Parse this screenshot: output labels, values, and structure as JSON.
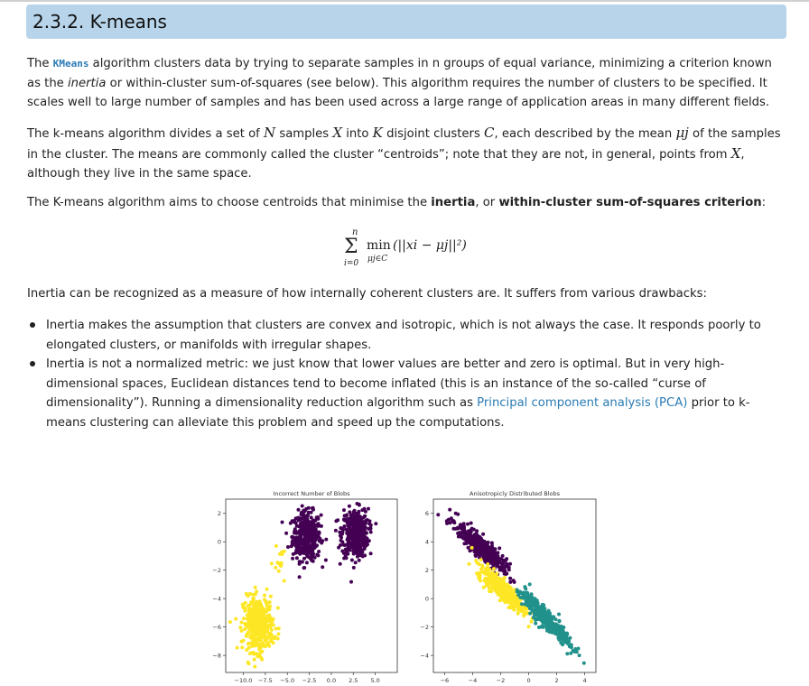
{
  "section": {
    "title": "2.3.2. K-means"
  },
  "para1": {
    "lead": "The ",
    "code": "KMeans",
    "text_a": " algorithm clusters data by trying to separate samples in n groups of equal variance, minimizing a criterion known as the ",
    "em": "inertia",
    "text_b": " or within-cluster sum-of-squares (see below). This algorithm requires the number of clusters to be specified. It scales well to large number of samples and has been used across a large range of application areas in many different fields."
  },
  "para2": {
    "t1": "The k-means algorithm divides a set of ",
    "N": "N",
    "t2": " samples ",
    "X": "X",
    "t3": " into ",
    "K": "K",
    "t4": " disjoint clusters ",
    "C": "C",
    "t5": ", each described by the mean ",
    "mu": "μj",
    "t6": " of the samples in the cluster. The means are commonly called the cluster “centroids”; note that they are not, in general, points from ",
    "X2": "X",
    "t7": ", although they live in the same space."
  },
  "para3": {
    "t1": "The K-means algorithm aims to choose centroids that minimise the ",
    "b1": "inertia",
    "t2": ", or ",
    "b2": "within-cluster sum-of-squares criterion",
    "t3": ":"
  },
  "formula": {
    "upper": "n",
    "sigma": "Σ",
    "lower": "i=0",
    "min": "min",
    "sub": "μj∈C",
    "expr": "(||xi − μj||²)"
  },
  "para4": "Inertia can be recognized as a measure of how internally coherent clusters are. It suffers from various drawbacks:",
  "bullets": {
    "b1": "Inertia makes the assumption that clusters are convex and isotropic, which is not always the case. It responds poorly to elongated clusters, or manifolds with irregular shapes.",
    "b2_a": "Inertia is not a normalized metric: we just know that lower values are better and zero is optimal. But in very high-dimensional spaces, Euclidean distances tend to become inflated (this is an instance of the so-called “curse of dimensionality”). Running a dimensionality reduction algorithm such as ",
    "b2_link": "Principal component analysis (PCA)",
    "b2_b": " prior to k-means clustering can alleviate this problem and speed up the computations."
  },
  "colors": {
    "purple": "#440154",
    "yellow": "#fde725",
    "teal": "#21918c",
    "heading_bg": "#b7d4ea",
    "link": "#2a7bb4"
  },
  "chart_data": [
    {
      "type": "scatter",
      "title": "Incorrect Number of Blobs",
      "xticks": [
        "−10.0",
        "−7.5",
        "−5.0",
        "−2.5",
        "0.0",
        "2.5",
        "5.0"
      ],
      "yticks": [
        "2",
        "0",
        "−2",
        "−4",
        "−6",
        "−8"
      ],
      "xlim": [
        -12,
        7.5
      ],
      "ylim": [
        -9.2,
        3.0
      ],
      "clusters": [
        {
          "color": "purple",
          "cx": -2.8,
          "cy": 0.4,
          "sx": 0.8,
          "sy": 0.85,
          "n": 420
        },
        {
          "color": "purple",
          "cx": 2.7,
          "cy": 0.6,
          "sx": 0.75,
          "sy": 0.85,
          "n": 420
        },
        {
          "color": "yellow",
          "cx": -8.3,
          "cy": -5.8,
          "sx": 0.85,
          "sy": 0.95,
          "n": 420
        },
        {
          "color": "yellow",
          "cx": -5.8,
          "cy": -1.5,
          "sx": 0.4,
          "sy": 0.5,
          "n": 15
        }
      ]
    },
    {
      "type": "scatter",
      "title": "Anisotropicly Distributed Blobs",
      "xticks": [
        "−6",
        "−4",
        "−2",
        "0",
        "2",
        "4"
      ],
      "yticks": [
        "6",
        "4",
        "2",
        "0",
        "−2",
        "−4"
      ],
      "xlim": [
        -6.8,
        4.8
      ],
      "ylim": [
        -5.2,
        7.0
      ],
      "clusters": [
        {
          "color": "purple",
          "cx": -3.4,
          "cy": 3.6,
          "dx": 0.72,
          "dy": -0.69,
          "sl": 1.0,
          "sw": 0.3,
          "n": 400
        },
        {
          "color": "yellow",
          "cx": -1.8,
          "cy": 0.6,
          "dx": 0.72,
          "dy": -0.69,
          "sl": 0.95,
          "sw": 0.28,
          "n": 400
        },
        {
          "color": "teal",
          "cx": 1.2,
          "cy": -1.4,
          "dx": 0.7,
          "dy": -0.71,
          "sl": 1.1,
          "sw": 0.25,
          "n": 400
        }
      ]
    }
  ]
}
